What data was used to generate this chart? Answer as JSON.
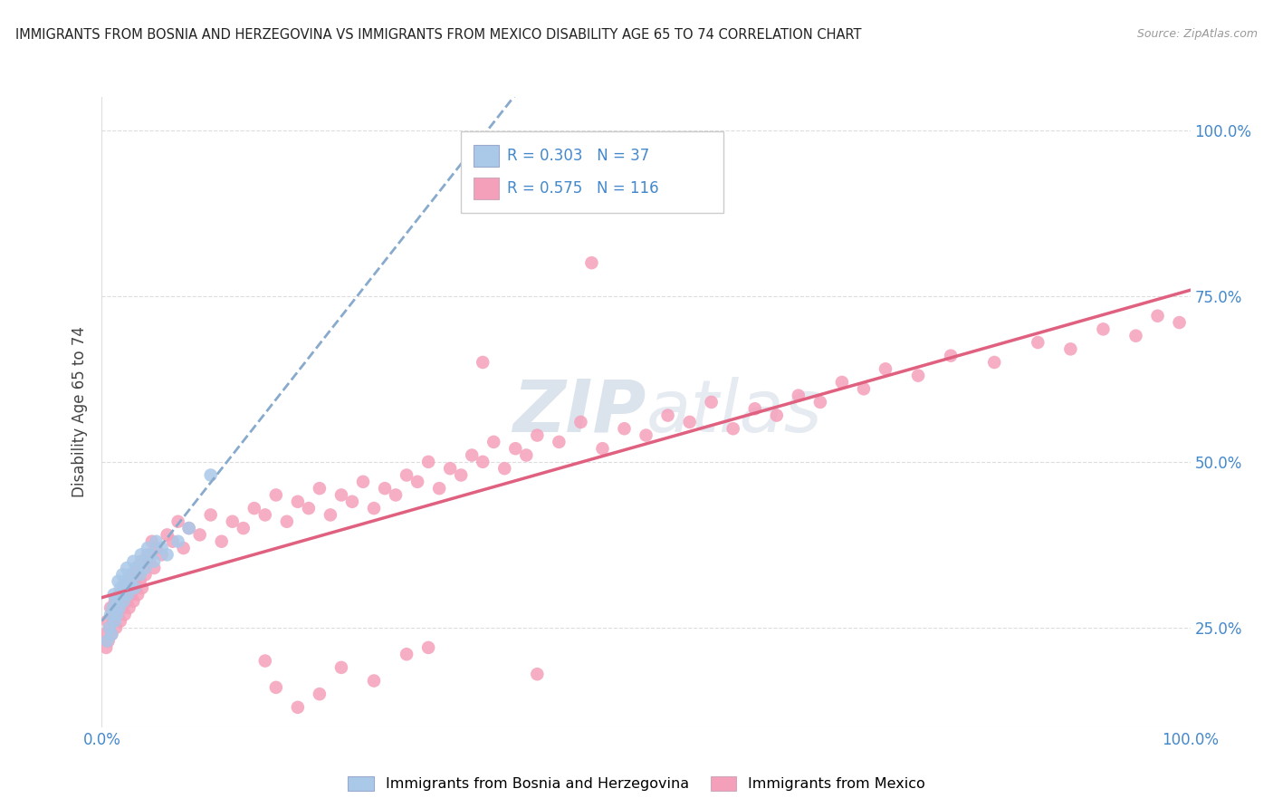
{
  "title": "IMMIGRANTS FROM BOSNIA AND HERZEGOVINA VS IMMIGRANTS FROM MEXICO DISABILITY AGE 65 TO 74 CORRELATION CHART",
  "source": "Source: ZipAtlas.com",
  "ylabel": "Disability Age 65 to 74",
  "bosnia_R": 0.303,
  "bosnia_N": 37,
  "mexico_R": 0.575,
  "mexico_N": 116,
  "bosnia_color": "#aac8e8",
  "mexico_color": "#f5a0ba",
  "bosnia_line_color": "#88aacc",
  "mexico_line_color": "#e06080",
  "title_color": "#222222",
  "source_color": "#999999",
  "tick_color": "#4488cc",
  "grid_color": "#dddddd",
  "watermark_color": "#ccd8e4",
  "legend_edge_color": "#cccccc",
  "bg_color": "#ffffff",
  "xlim": [
    0.0,
    1.0
  ],
  "ylim": [
    0.1,
    1.05
  ],
  "x_ticks": [
    0.0,
    1.0
  ],
  "x_tick_labels": [
    "0.0%",
    "100.0%"
  ],
  "y_ticks": [
    0.25,
    0.5,
    0.75,
    1.0
  ],
  "y_tick_labels": [
    "25.0%",
    "50.0%",
    "75.0%",
    "100.0%"
  ],
  "bosnia_x": [
    0.005,
    0.007,
    0.008,
    0.009,
    0.01,
    0.011,
    0.012,
    0.013,
    0.014,
    0.015,
    0.016,
    0.017,
    0.018,
    0.019,
    0.02,
    0.021,
    0.022,
    0.023,
    0.024,
    0.025,
    0.027,
    0.029,
    0.03,
    0.032,
    0.035,
    0.036,
    0.038,
    0.04,
    0.042,
    0.045,
    0.048,
    0.05,
    0.055,
    0.06,
    0.07,
    0.08,
    0.1
  ],
  "bosnia_y": [
    0.23,
    0.25,
    0.27,
    0.24,
    0.28,
    0.3,
    0.26,
    0.29,
    0.27,
    0.32,
    0.28,
    0.31,
    0.3,
    0.33,
    0.29,
    0.32,
    0.31,
    0.34,
    0.3,
    0.33,
    0.32,
    0.35,
    0.31,
    0.34,
    0.33,
    0.36,
    0.35,
    0.34,
    0.37,
    0.36,
    0.35,
    0.38,
    0.37,
    0.36,
    0.38,
    0.4,
    0.48
  ],
  "mexico_x": [
    0.002,
    0.004,
    0.005,
    0.006,
    0.007,
    0.008,
    0.009,
    0.01,
    0.011,
    0.012,
    0.013,
    0.014,
    0.015,
    0.016,
    0.017,
    0.018,
    0.019,
    0.02,
    0.021,
    0.022,
    0.023,
    0.024,
    0.025,
    0.026,
    0.027,
    0.028,
    0.029,
    0.03,
    0.031,
    0.032,
    0.033,
    0.034,
    0.035,
    0.036,
    0.037,
    0.038,
    0.04,
    0.042,
    0.044,
    0.046,
    0.048,
    0.05,
    0.055,
    0.06,
    0.065,
    0.07,
    0.075,
    0.08,
    0.09,
    0.1,
    0.11,
    0.12,
    0.13,
    0.14,
    0.15,
    0.16,
    0.17,
    0.18,
    0.19,
    0.2,
    0.21,
    0.22,
    0.23,
    0.24,
    0.25,
    0.26,
    0.27,
    0.28,
    0.29,
    0.3,
    0.31,
    0.32,
    0.33,
    0.34,
    0.35,
    0.36,
    0.37,
    0.38,
    0.39,
    0.4,
    0.42,
    0.44,
    0.46,
    0.48,
    0.5,
    0.52,
    0.54,
    0.56,
    0.58,
    0.6,
    0.62,
    0.64,
    0.66,
    0.68,
    0.7,
    0.72,
    0.75,
    0.78,
    0.82,
    0.86,
    0.89,
    0.92,
    0.95,
    0.97,
    0.99,
    0.3,
    0.4,
    0.2,
    0.15,
    0.25,
    0.18,
    0.22,
    0.16,
    0.28,
    0.35,
    0.45
  ],
  "mexico_y": [
    0.24,
    0.22,
    0.26,
    0.23,
    0.25,
    0.28,
    0.24,
    0.27,
    0.26,
    0.29,
    0.25,
    0.28,
    0.27,
    0.3,
    0.26,
    0.29,
    0.28,
    0.31,
    0.27,
    0.3,
    0.29,
    0.32,
    0.28,
    0.31,
    0.3,
    0.33,
    0.29,
    0.32,
    0.31,
    0.34,
    0.3,
    0.33,
    0.32,
    0.35,
    0.31,
    0.34,
    0.33,
    0.36,
    0.35,
    0.38,
    0.34,
    0.37,
    0.36,
    0.39,
    0.38,
    0.41,
    0.37,
    0.4,
    0.39,
    0.42,
    0.38,
    0.41,
    0.4,
    0.43,
    0.42,
    0.45,
    0.41,
    0.44,
    0.43,
    0.46,
    0.42,
    0.45,
    0.44,
    0.47,
    0.43,
    0.46,
    0.45,
    0.48,
    0.47,
    0.5,
    0.46,
    0.49,
    0.48,
    0.51,
    0.5,
    0.53,
    0.49,
    0.52,
    0.51,
    0.54,
    0.53,
    0.56,
    0.52,
    0.55,
    0.54,
    0.57,
    0.56,
    0.59,
    0.55,
    0.58,
    0.57,
    0.6,
    0.59,
    0.62,
    0.61,
    0.64,
    0.63,
    0.66,
    0.65,
    0.68,
    0.67,
    0.7,
    0.69,
    0.72,
    0.71,
    0.22,
    0.18,
    0.15,
    0.2,
    0.17,
    0.13,
    0.19,
    0.16,
    0.21,
    0.65,
    0.8
  ]
}
